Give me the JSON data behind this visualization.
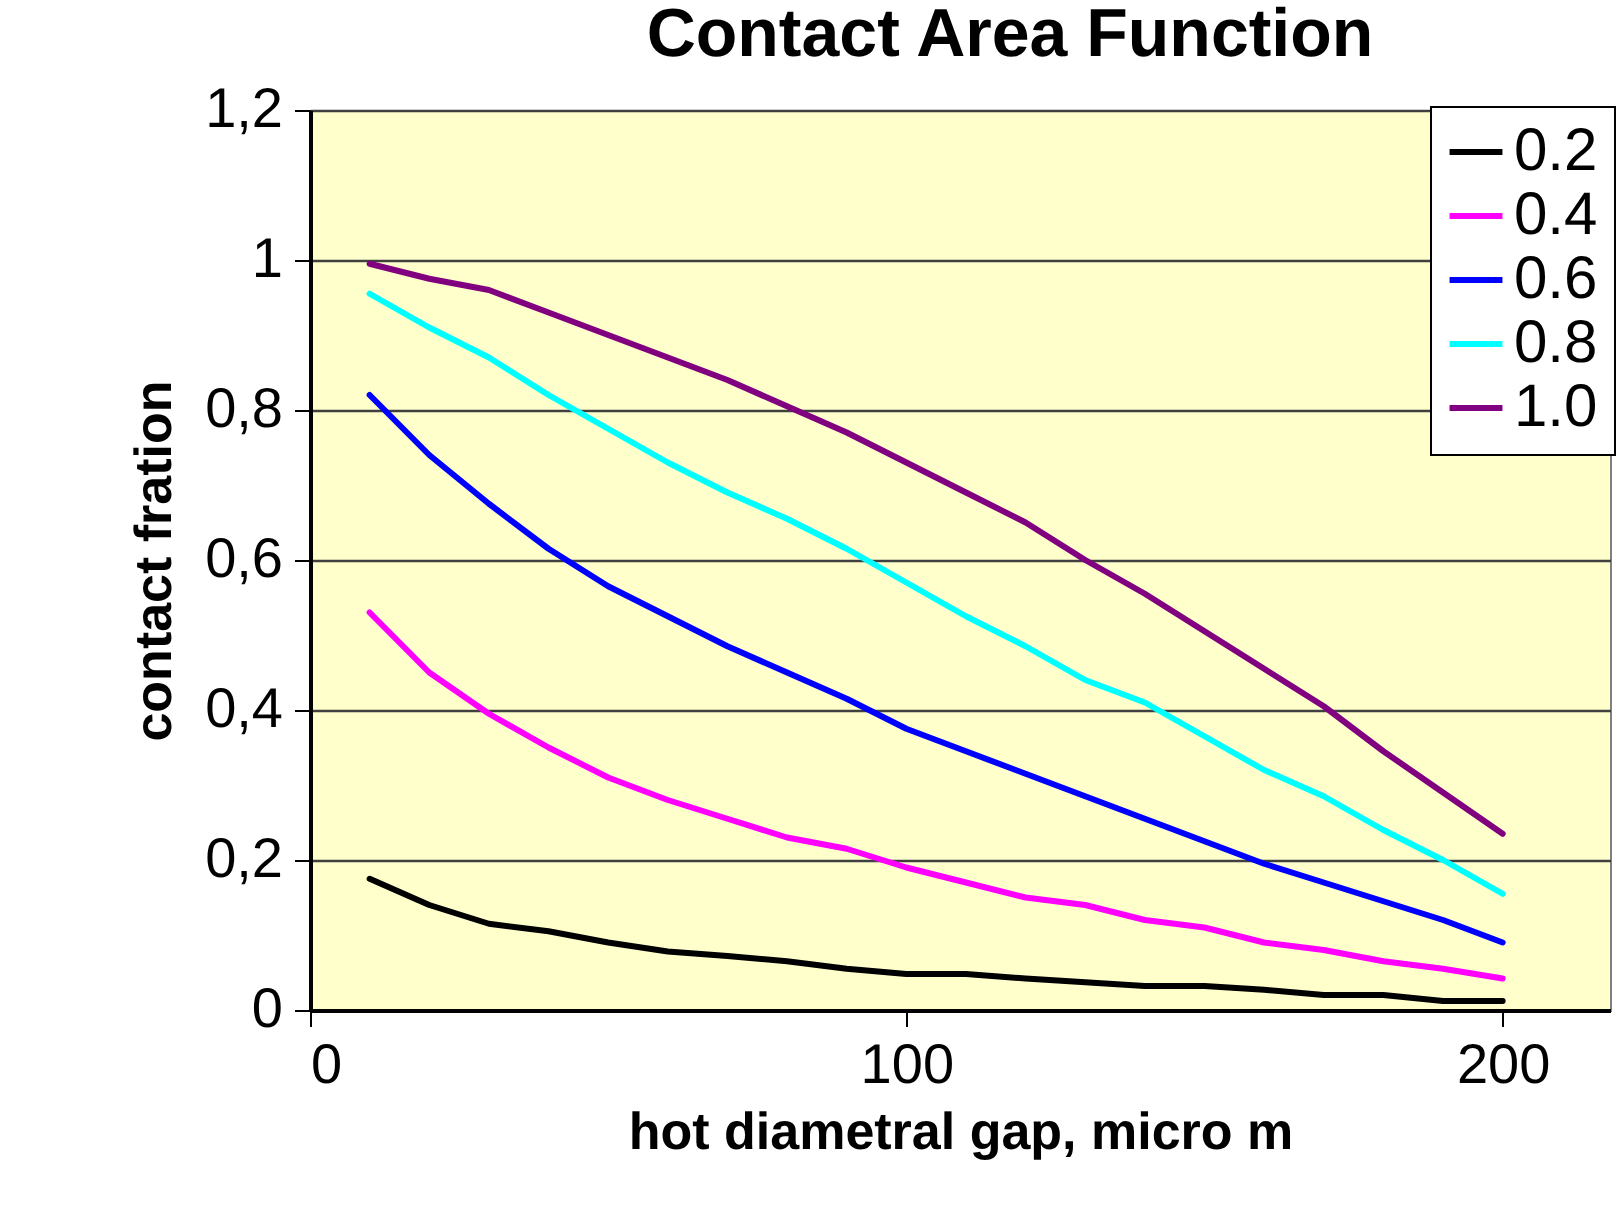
{
  "chart_data": {
    "type": "line",
    "title": "Contact Area Function",
    "xlabel": "hot diametral gap, micro m",
    "ylabel": "contact fration",
    "x": [
      10,
      20,
      30,
      40,
      50,
      60,
      70,
      80,
      90,
      100,
      110,
      120,
      130,
      140,
      150,
      160,
      170,
      180,
      190,
      200
    ],
    "series": [
      {
        "name": "0.2",
        "color": "#000000",
        "values": [
          0.175,
          0.14,
          0.115,
          0.105,
          0.09,
          0.078,
          0.072,
          0.065,
          0.055,
          0.048,
          0.048,
          0.042,
          0.037,
          0.032,
          0.032,
          0.027,
          0.02,
          0.02,
          0.012,
          0.012
        ]
      },
      {
        "name": "0.4",
        "color": "#ff00ff",
        "values": [
          0.53,
          0.45,
          0.395,
          0.35,
          0.31,
          0.28,
          0.255,
          0.23,
          0.215,
          0.19,
          0.17,
          0.15,
          0.14,
          0.12,
          0.11,
          0.09,
          0.08,
          0.065,
          0.055,
          0.042
        ]
      },
      {
        "name": "0.6",
        "color": "#0000ff",
        "values": [
          0.82,
          0.74,
          0.675,
          0.615,
          0.565,
          0.525,
          0.485,
          0.45,
          0.415,
          0.375,
          0.345,
          0.315,
          0.285,
          0.255,
          0.225,
          0.195,
          0.17,
          0.145,
          0.12,
          0.09
        ]
      },
      {
        "name": "0.8",
        "color": "#00ffff",
        "values": [
          0.955,
          0.91,
          0.87,
          0.82,
          0.775,
          0.73,
          0.69,
          0.655,
          0.615,
          0.57,
          0.525,
          0.485,
          0.44,
          0.41,
          0.365,
          0.32,
          0.285,
          0.24,
          0.2,
          0.155
        ]
      },
      {
        "name": "1.0",
        "color": "#800080",
        "values": [
          0.995,
          0.975,
          0.96,
          0.93,
          0.9,
          0.87,
          0.84,
          0.805,
          0.77,
          0.73,
          0.69,
          0.65,
          0.6,
          0.555,
          0.505,
          0.455,
          0.405,
          0.345,
          0.29,
          0.235
        ]
      }
    ],
    "xlim": [
      0,
      218
    ],
    "xticks": [
      0,
      100,
      200
    ],
    "ylim": [
      0,
      1.2
    ],
    "yticks": [
      0,
      {
        "value": 0.2,
        "label": "0,2"
      },
      {
        "value": 0.4,
        "label": "0,4"
      },
      {
        "value": 0.6,
        "label": "0,6"
      },
      {
        "value": 0.8,
        "label": "0,8"
      },
      1,
      {
        "value": 1.2,
        "label": "1,2"
      }
    ],
    "grid": "y",
    "legend": "top right",
    "marker": "none",
    "line_style": "solid"
  }
}
